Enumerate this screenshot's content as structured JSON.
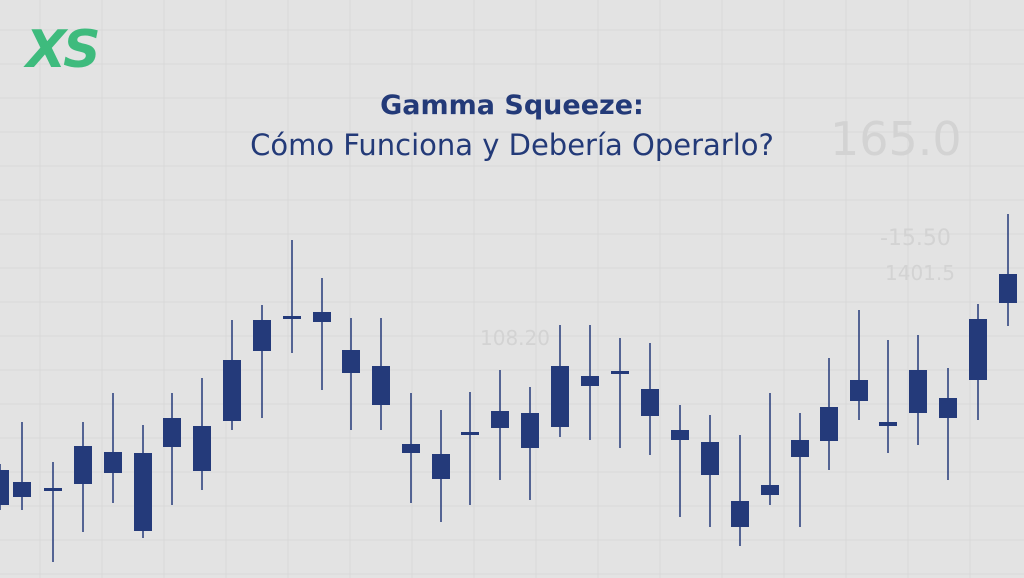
{
  "logo": "XS",
  "title": {
    "line1": "Gamma Squeeze:",
    "line2": "Cómo Funciona y Debería Operarlo?"
  },
  "background_figures": [
    "165.0",
    "-15.50",
    "1401.5",
    "108.20"
  ]
}
